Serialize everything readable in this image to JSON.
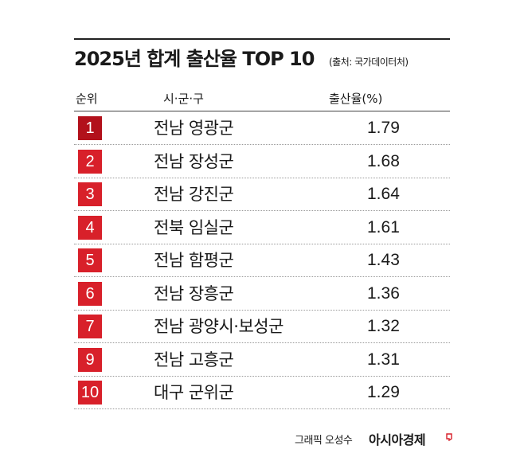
{
  "title": "2025년 합계 출산율 TOP 10",
  "source": "(출처: 국가데이터처)",
  "headers": {
    "rank": "순위",
    "region": "시·군·구",
    "rate": "출산율(%)"
  },
  "colors": {
    "badge_top": "#b2111b",
    "badge": "#d8202a",
    "brand_mark": "#d8202a"
  },
  "chart_data": {
    "type": "table",
    "title": "2025년 합계 출산율 TOP 10",
    "columns": [
      "순위",
      "시·군·구",
      "출산율(%)"
    ],
    "rows": [
      {
        "rank": "1",
        "region": "전남 영광군",
        "rate": "1.79"
      },
      {
        "rank": "2",
        "region": "전남 장성군",
        "rate": "1.68"
      },
      {
        "rank": "3",
        "region": "전남 강진군",
        "rate": "1.64"
      },
      {
        "rank": "4",
        "region": "전북 임실군",
        "rate": "1.61"
      },
      {
        "rank": "5",
        "region": "전남 함평군",
        "rate": "1.43"
      },
      {
        "rank": "6",
        "region": "전남 장흥군",
        "rate": "1.36"
      },
      {
        "rank": "7",
        "region": "전남 광양시·보성군",
        "rate": "1.32"
      },
      {
        "rank": "9",
        "region": "전남 고흥군",
        "rate": "1.31"
      },
      {
        "rank": "10",
        "region": "대구 군위군",
        "rate": "1.29"
      }
    ]
  },
  "credit": "그래픽 오성수",
  "brand": "아시아경제"
}
